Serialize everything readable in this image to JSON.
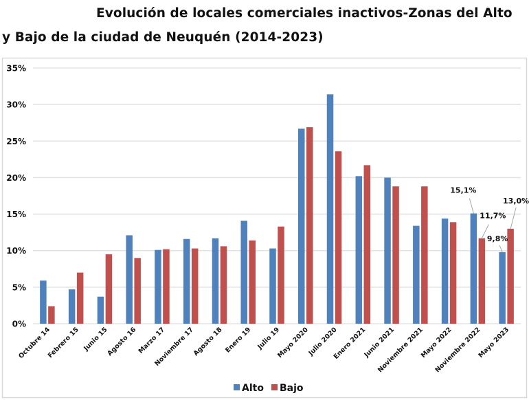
{
  "title_lines": [
    "Evolución de locales comerciales inactivos-Zonas del Alto",
    "y Bajo de la ciudad de Neuquén (2014-2023)"
  ],
  "chart_data": {
    "type": "bar",
    "title": "Evolución de locales comerciales inactivos-Zonas del Alto y Bajo de la ciudad de Neuquén (2014-2023)",
    "xlabel": "",
    "ylabel": "",
    "ylim": [
      0,
      35
    ],
    "yticks": [
      0,
      5,
      10,
      15,
      20,
      25,
      30,
      35
    ],
    "ytick_labels": [
      "0%",
      "5%",
      "10%",
      "15%",
      "20%",
      "25%",
      "30%",
      "35%"
    ],
    "grid": true,
    "legend_position": "bottom",
    "categories": [
      "Octubre 14",
      "Febrero 15",
      "Junio 15",
      "Agosto 16",
      "Marzo 17",
      "Noviembre 17",
      "Agosto 18",
      "Enero 19",
      "Julio 19",
      "Mayo 2020",
      "Julio 2020",
      "Enero 2021",
      "Junio 2021",
      "Noviembre 2021",
      "Mayo 2022",
      "Noviembre 2022",
      "Mayo 2023"
    ],
    "series": [
      {
        "name": "Alto",
        "color": "#4F81BD",
        "values": [
          5.9,
          4.7,
          3.7,
          12.1,
          10.1,
          11.6,
          11.7,
          14.1,
          10.3,
          26.7,
          31.4,
          20.2,
          20.0,
          13.4,
          14.4,
          15.1,
          9.8
        ]
      },
      {
        "name": "Bajo",
        "color": "#C0504D",
        "values": [
          2.4,
          7.0,
          9.5,
          9.0,
          10.2,
          10.3,
          10.6,
          11.4,
          13.3,
          26.9,
          23.6,
          21.7,
          18.8,
          18.8,
          13.9,
          11.7,
          13.0
        ]
      }
    ],
    "annotations": [
      {
        "series": "Alto",
        "category": "Noviembre 2022",
        "text": "15,1%"
      },
      {
        "series": "Bajo",
        "category": "Noviembre 2022",
        "text": "11,7%"
      },
      {
        "series": "Alto",
        "category": "Mayo 2023",
        "text": "9,8%"
      },
      {
        "series": "Bajo",
        "category": "Mayo 2023",
        "text": "13,0%"
      }
    ]
  }
}
